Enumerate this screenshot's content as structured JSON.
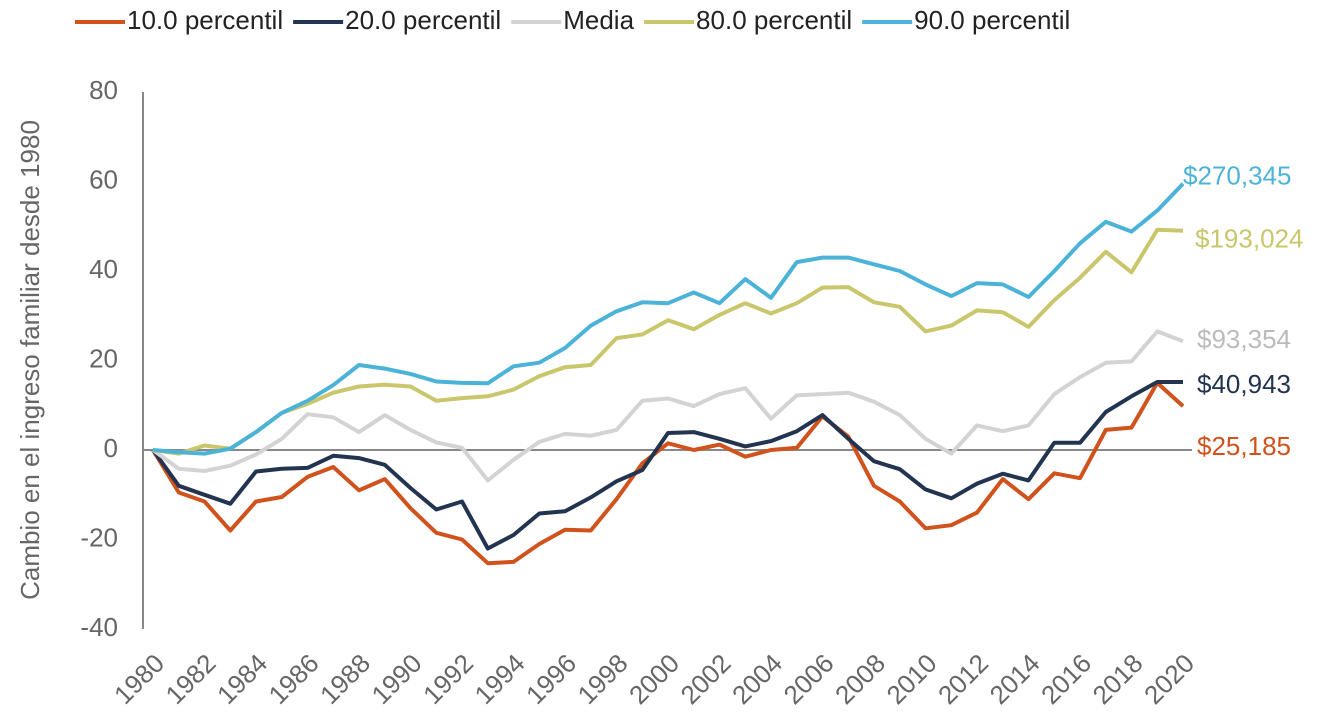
{
  "chart_data": {
    "type": "line",
    "y_label": "Cambio en el ingreso familiar desde 1980",
    "x": [
      1980,
      1981,
      1982,
      1983,
      1984,
      1985,
      1986,
      1987,
      1988,
      1989,
      1990,
      1991,
      1992,
      1993,
      1994,
      1995,
      1996,
      1997,
      1998,
      1999,
      2000,
      2001,
      2002,
      2003,
      2004,
      2005,
      2006,
      2007,
      2008,
      2009,
      2010,
      2011,
      2012,
      2013,
      2014,
      2015,
      2016,
      2017,
      2018,
      2019,
      2020
    ],
    "xlim": [
      1980,
      2020
    ],
    "xticks": [
      1980,
      1982,
      1984,
      1986,
      1988,
      1990,
      1992,
      1994,
      1996,
      1998,
      2000,
      2002,
      2004,
      2006,
      2008,
      2010,
      2012,
      2014,
      2016,
      2018,
      2020
    ],
    "ylim": [
      -40,
      80
    ],
    "yticks": [
      -40,
      -20,
      0,
      20,
      40,
      60,
      80
    ],
    "grid": false,
    "legend": "top",
    "series": [
      {
        "name": "10.0 percentil",
        "color": "#d0521c",
        "label": "$25,185",
        "values": [
          0,
          -9.5,
          -11.5,
          -18,
          -11.5,
          -10.5,
          -6,
          -3.8,
          -9,
          -6.5,
          -13,
          -18.5,
          -20,
          -25.3,
          -25,
          -21,
          -17.8,
          -18,
          -11,
          -3,
          1.5,
          0,
          1.2,
          -1.5,
          0,
          0.5,
          7.5,
          3,
          -8,
          -11.5,
          -17.5,
          -16.8,
          -14,
          -6.5,
          -11,
          -5.2,
          -6.3,
          4.5,
          5,
          15,
          9.8
        ]
      },
      {
        "name": "20.0 percentil",
        "color": "#22344f",
        "label": "$40,943",
        "values": [
          0,
          -8,
          -10,
          -12,
          -4.8,
          -4.2,
          -4,
          -1.3,
          -1.8,
          -3.3,
          -8.5,
          -13.3,
          -11.5,
          -22,
          -19,
          -14.2,
          -13.7,
          -10.6,
          -7,
          -4.5,
          3.8,
          4,
          2.5,
          0.8,
          2,
          4.2,
          7.8,
          2.5,
          -2.5,
          -4.3,
          -8.8,
          -10.8,
          -7.5,
          -5.3,
          -6.8,
          1.6,
          1.6,
          8.5,
          12,
          15.2,
          15.2
        ]
      },
      {
        "name": "Media",
        "color": "#d3d3d3",
        "label": "$93,354",
        "values": [
          0,
          -4.2,
          -4.7,
          -3.5,
          -1,
          2.5,
          8,
          7.3,
          4,
          7.8,
          4.5,
          1.7,
          0.5,
          -6.8,
          -2.2,
          1.8,
          3.6,
          3.2,
          4.5,
          11,
          11.5,
          9.8,
          12.5,
          13.8,
          7,
          12.2,
          12.5,
          12.8,
          10.8,
          7.8,
          2.5,
          -0.8,
          5.5,
          4.2,
          5.5,
          12.5,
          16.3,
          19.5,
          19.8,
          26.5,
          24.3
        ]
      },
      {
        "name": "80.0 percentil",
        "color": "#c9c66b",
        "label": "$193,024",
        "values": [
          0,
          -0.8,
          1,
          0.3,
          4,
          8.3,
          10.3,
          12.8,
          14.2,
          14.6,
          14.2,
          11,
          11.6,
          12,
          13.5,
          16.5,
          18.5,
          19,
          25,
          25.8,
          29,
          27,
          30.2,
          32.8,
          30.5,
          32.8,
          36.3,
          36.4,
          33,
          32,
          26.5,
          27.8,
          31.2,
          30.8,
          27.5,
          33.5,
          38.5,
          44.3,
          39.7,
          49.2,
          49
        ]
      },
      {
        "name": "90.0 percentil",
        "color": "#4cb3d8",
        "label": "$270,345",
        "values": [
          0,
          -0.5,
          -0.8,
          0.3,
          4,
          8.3,
          11,
          14.5,
          19,
          18.2,
          17,
          15.3,
          15,
          14.9,
          18.7,
          19.5,
          22.8,
          27.8,
          31,
          33,
          32.8,
          35.2,
          32.8,
          38.2,
          34,
          42,
          43,
          43,
          41.5,
          40,
          37,
          34.4,
          37.3,
          37,
          34.2,
          40,
          46.2,
          51,
          48.8,
          53.5,
          59.5
        ]
      }
    ]
  }
}
